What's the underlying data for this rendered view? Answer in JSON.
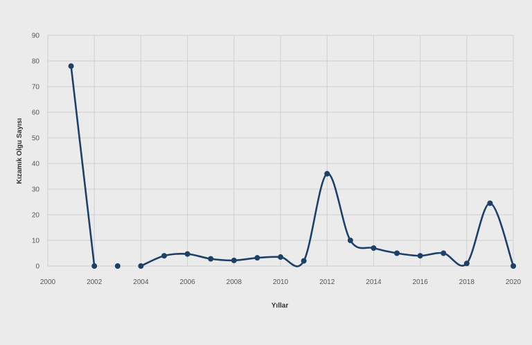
{
  "chart_data": {
    "type": "line",
    "xlabel": "Yıllar",
    "ylabel": "Kızamık Olgu Sayısı",
    "xlim": [
      2000,
      2020
    ],
    "ylim": [
      0,
      90
    ],
    "x_ticks": [
      "2000",
      "2002",
      "2004",
      "2006",
      "2008",
      "2010",
      "2012",
      "2014",
      "2016",
      "2018",
      "2020"
    ],
    "y_ticks": [
      "0",
      "10",
      "20",
      "30",
      "40",
      "50",
      "60",
      "70",
      "80",
      "90"
    ],
    "grid": true,
    "smooth": true,
    "series": [
      {
        "color": "#1f4066",
        "segments": [
          [
            [
              2001,
              78
            ],
            [
              2002,
              0
            ]
          ],
          [
            [
              2003,
              0
            ]
          ],
          [
            [
              2004,
              0
            ],
            [
              2005,
              4
            ],
            [
              2006,
              4.7
            ],
            [
              2007,
              2.8
            ],
            [
              2008,
              2.2
            ],
            [
              2009,
              3.2
            ],
            [
              2010,
              3.5
            ],
            [
              2011,
              2
            ],
            [
              2012,
              36
            ],
            [
              2013,
              10
            ],
            [
              2014,
              7
            ],
            [
              2015,
              5
            ],
            [
              2016,
              4
            ],
            [
              2017,
              5
            ],
            [
              2018,
              1
            ],
            [
              2019,
              24.5
            ],
            [
              2020,
              0
            ]
          ]
        ]
      }
    ]
  }
}
